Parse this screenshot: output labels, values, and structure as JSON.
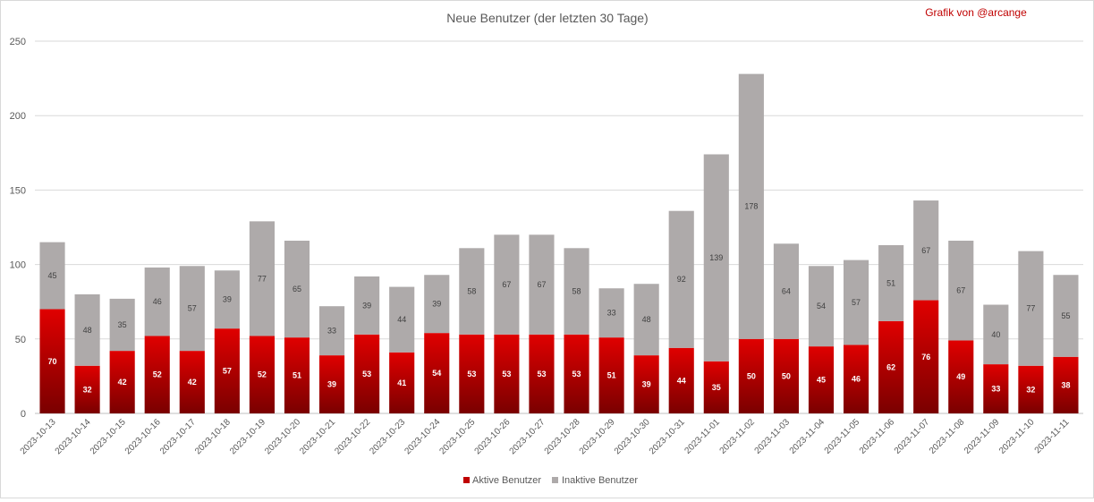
{
  "chart_data": {
    "type": "bar",
    "stacked": true,
    "title": "Neue Benutzer (der letzten 30 Tage)",
    "credit": "Grafik von @arcange",
    "xlabel": "",
    "ylabel": "",
    "ylim": [
      0,
      250
    ],
    "yticks": [
      0,
      50,
      100,
      150,
      200,
      250
    ],
    "grid": true,
    "legend_position": "bottom",
    "categories": [
      "2023-10-13",
      "2023-10-14",
      "2023-10-15",
      "2023-10-16",
      "2023-10-17",
      "2023-10-18",
      "2023-10-19",
      "2023-10-20",
      "2023-10-21",
      "2023-10-22",
      "2023-10-23",
      "2023-10-24",
      "2023-10-25",
      "2023-10-26",
      "2023-10-27",
      "2023-10-28",
      "2023-10-29",
      "2023-10-30",
      "2023-10-31",
      "2023-11-01",
      "2023-11-02",
      "2023-11-03",
      "2023-11-04",
      "2023-11-05",
      "2023-11-06",
      "2023-11-07",
      "2023-11-08",
      "2023-11-09",
      "2023-11-10",
      "2023-11-11"
    ],
    "series": [
      {
        "name": "Aktive Benutzer",
        "color": "#c00000",
        "values": [
          70,
          32,
          42,
          52,
          42,
          57,
          52,
          51,
          39,
          53,
          41,
          54,
          53,
          53,
          53,
          53,
          51,
          39,
          44,
          35,
          50,
          50,
          45,
          46,
          62,
          76,
          49,
          33,
          32,
          38
        ]
      },
      {
        "name": "Inaktive Benutzer",
        "color": "#aeaaaa",
        "values": [
          45,
          48,
          35,
          46,
          57,
          39,
          77,
          65,
          33,
          39,
          44,
          39,
          58,
          67,
          67,
          58,
          33,
          48,
          92,
          139,
          178,
          64,
          54,
          57,
          51,
          67,
          67,
          40,
          77,
          55
        ]
      }
    ]
  }
}
